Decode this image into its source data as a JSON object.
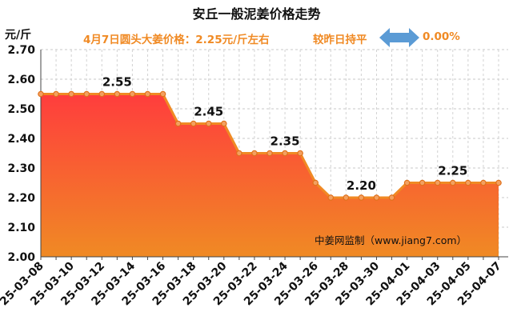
{
  "chart_data": {
    "type": "line",
    "title": "安丘一般泥姜价格走势",
    "ylabel": "元/斤",
    "ylim": [
      2.0,
      2.7
    ],
    "yticks": [
      "2.00",
      "2.10",
      "2.20",
      "2.30",
      "2.40",
      "2.50",
      "2.60",
      "2.70"
    ],
    "x": [
      "25-03-08",
      "25-03-09",
      "25-03-10",
      "25-03-11",
      "25-03-12",
      "25-03-13",
      "25-03-14",
      "25-03-15",
      "25-03-16",
      "25-03-17",
      "25-03-18",
      "25-03-19",
      "25-03-20",
      "25-03-21",
      "25-03-22",
      "25-03-23",
      "25-03-24",
      "25-03-25",
      "25-03-26",
      "25-03-27",
      "25-03-28",
      "25-03-29",
      "25-03-30",
      "25-03-31",
      "25-04-01",
      "25-04-02",
      "25-04-03",
      "25-04-04",
      "25-04-05",
      "25-04-06",
      "25-04-07"
    ],
    "xtick_labels": [
      "25-03-08",
      "25-03-10",
      "25-03-12",
      "25-03-14",
      "25-03-16",
      "25-03-18",
      "25-03-20",
      "25-03-22",
      "25-03-24",
      "25-03-26",
      "25-03-28",
      "25-03-30",
      "25-04-01",
      "25-04-03",
      "25-04-05",
      "25-04-07"
    ],
    "values": [
      2.55,
      2.55,
      2.55,
      2.55,
      2.55,
      2.55,
      2.55,
      2.55,
      2.55,
      2.45,
      2.45,
      2.45,
      2.45,
      2.35,
      2.35,
      2.35,
      2.35,
      2.35,
      2.25,
      2.2,
      2.2,
      2.2,
      2.2,
      2.2,
      2.25,
      2.25,
      2.25,
      2.25,
      2.25,
      2.25,
      2.25
    ],
    "data_labels": [
      {
        "index": 5,
        "text": "2.55"
      },
      {
        "index": 11,
        "text": "2.45"
      },
      {
        "index": 16,
        "text": "2.35"
      },
      {
        "index": 21,
        "text": "2.20"
      },
      {
        "index": 27,
        "text": "2.25"
      }
    ],
    "grid": true,
    "line_color": "#f08a24",
    "fill_color_top": "#ff3d3d",
    "fill_color_bottom": "#f08a24"
  },
  "header": {
    "title": "安丘一般泥姜价格走势",
    "unit": "元/斤",
    "price_text": "4月7日圆头大姜价格：2.25元/斤左右",
    "compare_text": "较昨日持平",
    "change_text": "0.00%",
    "arrow_icon": "double-arrow-icon",
    "arrow_color": "#5b9bd5"
  },
  "watermark": "中姜网监制（www.jiang7.com）"
}
